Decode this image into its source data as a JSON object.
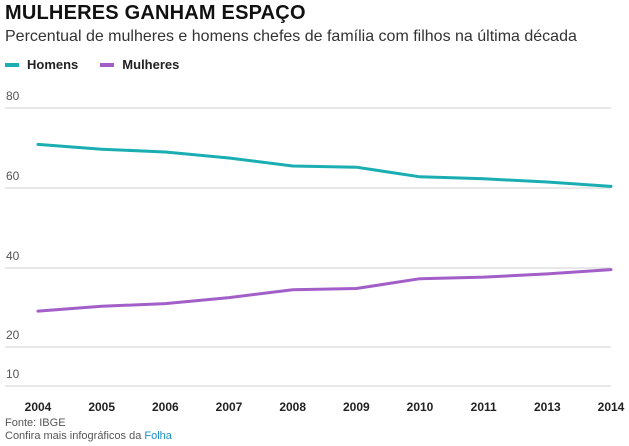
{
  "header": {
    "title": "MULHERES GANHAM ESPAÇO",
    "subtitle": "Percentual de mulheres e homens chefes de família com filhos na última década"
  },
  "legend": [
    {
      "label": "Homens",
      "color": "#1aaeb3"
    },
    {
      "label": "Mulheres",
      "color": "#a35fc8"
    }
  ],
  "chart_data": {
    "type": "line",
    "title": "MULHERES GANHAM ESPAÇO",
    "xlabel": "",
    "ylabel": "",
    "categories": [
      "2004",
      "2005",
      "2006",
      "2007",
      "2008",
      "2009",
      "2010",
      "2011",
      "2013",
      "2014"
    ],
    "series": [
      {
        "name": "Homens",
        "color": "#1aaeb3",
        "values": [
          70.9,
          69.7,
          69.0,
          67.5,
          65.5,
          65.2,
          62.8,
          62.3,
          61.5,
          60.4
        ]
      },
      {
        "name": "Mulheres",
        "color": "#a35fc8",
        "values": [
          29.1,
          30.3,
          31.0,
          32.5,
          34.5,
          34.8,
          37.3,
          37.7,
          38.5,
          39.6
        ]
      }
    ],
    "yticks": [
      "80",
      "60",
      "40",
      "20",
      "10"
    ],
    "ytick_values": [
      80,
      60,
      40,
      20,
      10
    ],
    "grid": true,
    "legend_position": "top-left"
  },
  "footer": {
    "source": "Fonte: IBGE",
    "more_prefix": "Confira mais infográficos da",
    "more_link": "Folha"
  }
}
